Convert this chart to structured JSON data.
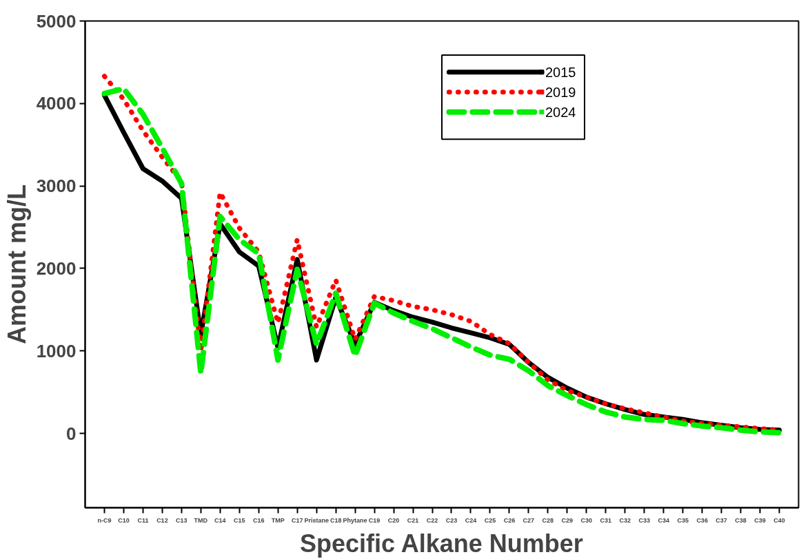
{
  "chart_data": {
    "type": "line",
    "xlabel": "Specific Alkane Number",
    "ylabel": "Amount mg/L",
    "categories": [
      "n-C9",
      "C10",
      "C11",
      "C12",
      "C13",
      "TMD",
      "C14",
      "C15",
      "C16",
      "TMP",
      "C17",
      "Pristane",
      "C18",
      "Phytane",
      "C19",
      "C20",
      "C21",
      "C22",
      "C23",
      "C24",
      "C25",
      "C26",
      "C27",
      "C28",
      "C29",
      "C30",
      "C31",
      "C32",
      "C33",
      "C34",
      "C35",
      "C36",
      "C37",
      "C38",
      "C39",
      "C40"
    ],
    "series": [
      {
        "name": "2015",
        "color": "#000000",
        "line_style": "solid",
        "values": [
          4100,
          3650,
          3210,
          3060,
          2850,
          1200,
          2540,
          2200,
          2030,
          1040,
          2110,
          890,
          1650,
          1080,
          1590,
          1490,
          1410,
          1350,
          1280,
          1220,
          1160,
          1080,
          860,
          680,
          550,
          440,
          360,
          290,
          230,
          200,
          170,
          130,
          100,
          70,
          50,
          40
        ]
      },
      {
        "name": "2019",
        "color": "#ff0000",
        "line_style": "dotted",
        "values": [
          4330,
          4050,
          3670,
          3350,
          3050,
          1000,
          2920,
          2490,
          2200,
          1340,
          2350,
          1290,
          1860,
          1140,
          1660,
          1610,
          1540,
          1500,
          1440,
          1360,
          1200,
          1090,
          860,
          650,
          520,
          440,
          360,
          300,
          250,
          200,
          150,
          120,
          100,
          80,
          60,
          40
        ]
      },
      {
        "name": "2024",
        "color": "#00ee00",
        "line_style": "dashed",
        "values": [
          4120,
          4180,
          3870,
          3460,
          3030,
          730,
          2630,
          2350,
          2180,
          890,
          1990,
          1080,
          1700,
          940,
          1580,
          1460,
          1360,
          1270,
          1160,
          1050,
          950,
          900,
          760,
          580,
          460,
          350,
          260,
          200,
          170,
          160,
          120,
          90,
          70,
          40,
          20,
          10
        ]
      }
    ],
    "ylim": [
      -900,
      5000
    ],
    "yticks": [
      0,
      1000,
      2000,
      3000,
      4000,
      5000
    ],
    "grid": false,
    "legend": "top right"
  }
}
